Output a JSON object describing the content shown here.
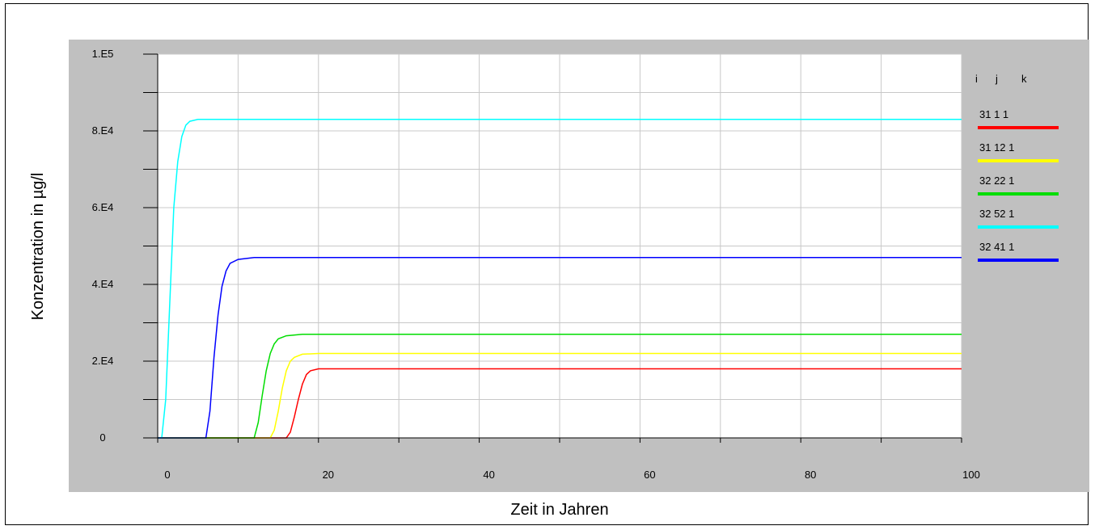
{
  "chart_data": {
    "type": "line",
    "title": "",
    "xlabel": "Zeit in Jahren",
    "ylabel": "Konzentration in µg/l",
    "xlim": [
      0,
      100
    ],
    "ylim": [
      0,
      100000
    ],
    "x_ticks": [
      0,
      20,
      40,
      60,
      80,
      100
    ],
    "x_tick_labels": [
      "0",
      "20",
      "40",
      "60",
      "80",
      "100"
    ],
    "y_ticks": [
      0,
      20000,
      40000,
      60000,
      80000,
      100000
    ],
    "y_tick_labels": [
      "0",
      "2.E4",
      "4.E4",
      "6.E4",
      "8.E4",
      "1.E5"
    ],
    "grid": true,
    "legend_placement": "right",
    "legend_header": [
      "i",
      "j",
      "k"
    ],
    "series": [
      {
        "name": "31  1 1",
        "color": "#ff0000",
        "x": [
          0,
          16,
          16.5,
          17,
          17.5,
          18,
          18.5,
          19,
          20,
          22,
          100
        ],
        "y": [
          0,
          0,
          1500,
          5500,
          10000,
          14000,
          16500,
          17500,
          18000,
          18000,
          18000
        ]
      },
      {
        "name": "31 12 1",
        "color": "#ffff00",
        "x": [
          0,
          14,
          14.5,
          15,
          15.5,
          16,
          16.5,
          17,
          18,
          20,
          100
        ],
        "y": [
          0,
          0,
          2000,
          7000,
          13000,
          17500,
          20000,
          21000,
          21800,
          22000,
          22000
        ]
      },
      {
        "name": "32 22 1",
        "color": "#00dd00",
        "x": [
          0,
          12,
          12.5,
          13,
          13.5,
          14,
          14.5,
          15,
          16,
          18,
          100
        ],
        "y": [
          0,
          0,
          4000,
          11000,
          17500,
          22000,
          24500,
          25800,
          26600,
          27000,
          27000
        ]
      },
      {
        "name": "32 52 1",
        "color": "#00ffff",
        "x": [
          0,
          0.5,
          1,
          1.5,
          2,
          2.5,
          3,
          3.5,
          4,
          5,
          100
        ],
        "y": [
          0,
          0,
          10000,
          35000,
          60000,
          72000,
          78500,
          81500,
          82500,
          83000,
          83000
        ]
      },
      {
        "name": "32 41 1",
        "color": "#0000ff",
        "x": [
          0,
          6,
          6.5,
          7,
          7.5,
          8,
          8.5,
          9,
          10,
          12,
          100
        ],
        "y": [
          0,
          0,
          7000,
          21000,
          32000,
          39500,
          43500,
          45500,
          46500,
          47000,
          47000
        ]
      }
    ]
  }
}
